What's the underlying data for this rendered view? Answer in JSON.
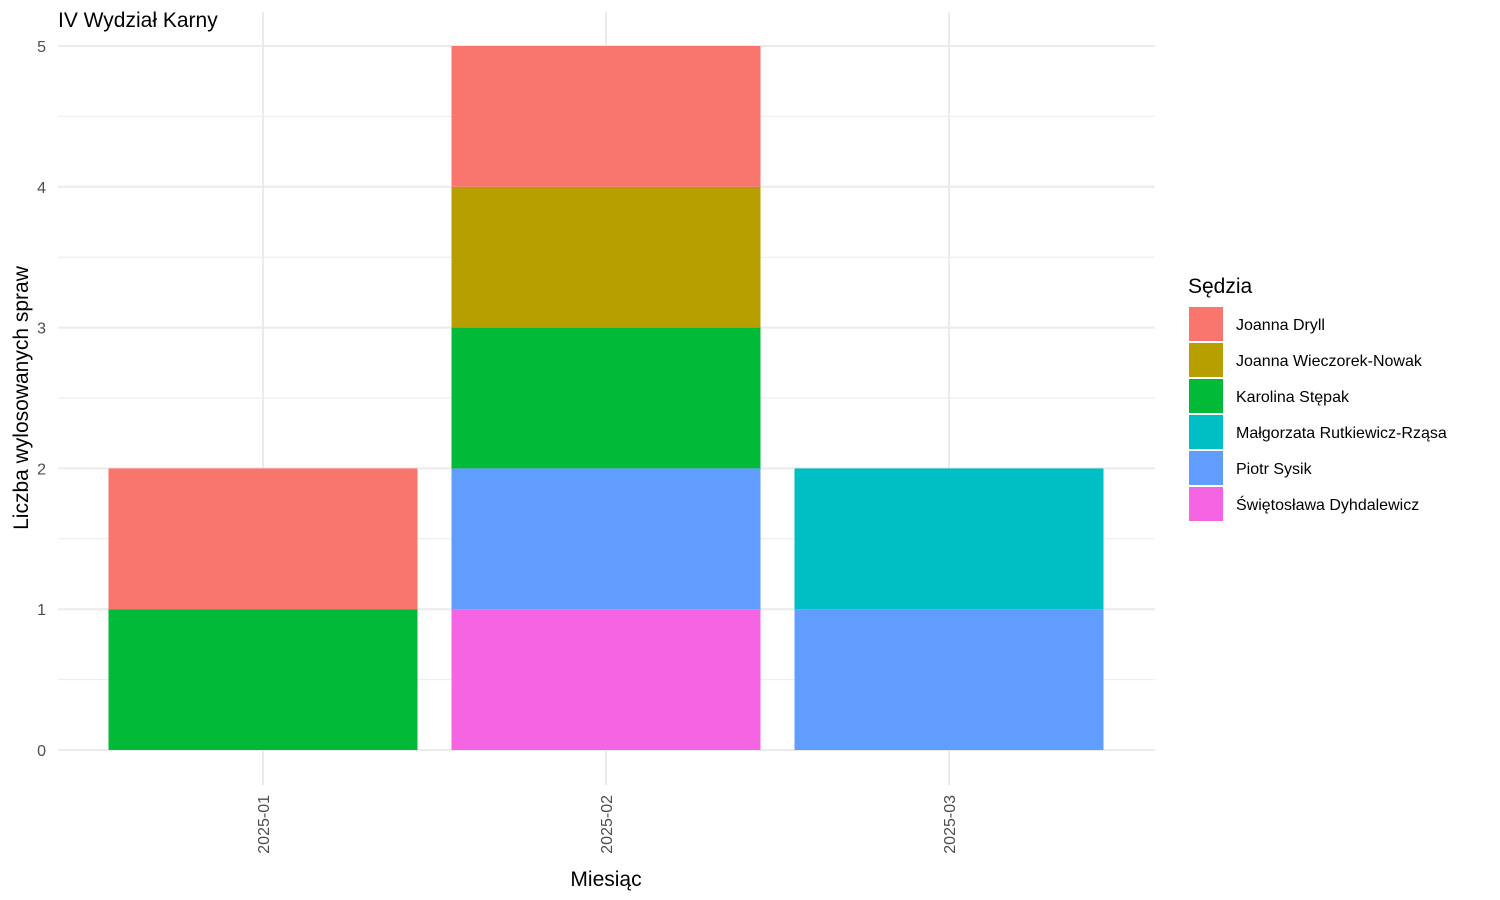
{
  "chart_data": {
    "type": "bar",
    "stacked": true,
    "title": "IV Wydział Karny",
    "xlabel": "Miesiąc",
    "ylabel": "Liczba wylosowanych spraw",
    "categories": [
      "2025-01",
      "2025-02",
      "2025-03"
    ],
    "ylim": [
      0,
      5
    ],
    "yticks": [
      "0",
      "1",
      "2",
      "3",
      "4",
      "5"
    ],
    "grid": true,
    "legend": {
      "title": "Sędzia",
      "placement": "right"
    },
    "series": [
      {
        "name": "Joanna Dryll",
        "color": "#F8766D",
        "values": [
          1,
          1,
          0
        ]
      },
      {
        "name": "Joanna Wieczorek-Nowak",
        "color": "#B79F00",
        "values": [
          0,
          1,
          0
        ]
      },
      {
        "name": "Karolina Stępak",
        "color": "#00BA38",
        "values": [
          1,
          1,
          0
        ]
      },
      {
        "name": "Małgorzata Rutkiewicz-Rząsa",
        "color": "#00BFC4",
        "values": [
          0,
          0,
          1
        ]
      },
      {
        "name": "Piotr Sysik",
        "color": "#619CFF",
        "values": [
          0,
          1,
          1
        ]
      },
      {
        "name": "Świętosława Dyhdalewicz",
        "color": "#F564E3",
        "values": [
          0,
          1,
          0
        ]
      }
    ]
  }
}
